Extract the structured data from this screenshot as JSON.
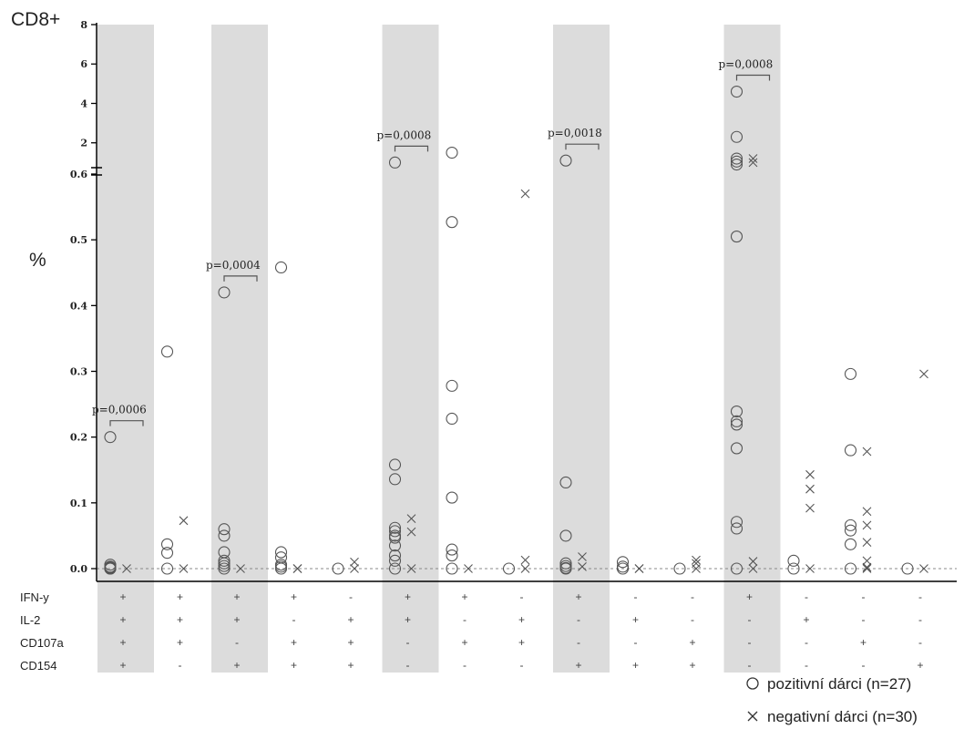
{
  "chart_data": {
    "type": "scatter",
    "title": "CD8+",
    "ylabel": "%",
    "colors": {
      "shade": "#dcdcdc",
      "marker": "#555555",
      "axis": "#000000",
      "baseline": "#888888",
      "text": "#222222"
    },
    "y_axis": {
      "lower_segment": {
        "range": [
          0,
          0.6
        ],
        "ticks": [
          "0.0",
          "0.1",
          "0.2",
          "0.3",
          "0.4",
          "0.5",
          "0.6"
        ]
      },
      "upper_segment": {
        "range": [
          0.6,
          8
        ],
        "ticks": [
          "2",
          "4",
          "6",
          "8"
        ]
      },
      "axis_break": true
    },
    "row_labels": [
      "IFN-y",
      "IL-2",
      "CD107a",
      "CD154"
    ],
    "groups": [
      {
        "shaded": true,
        "markers": [
          "+",
          "+",
          "+",
          "+"
        ],
        "p_value": "p=0,0006",
        "positive": [
          0.2,
          0.006,
          0.003,
          0.002,
          0.001,
          0.0,
          0.0
        ],
        "negative": [
          0.0
        ]
      },
      {
        "shaded": false,
        "markers": [
          "+",
          "+",
          "+",
          "-"
        ],
        "positive": [
          0.33,
          0.037,
          0.024,
          0.0
        ],
        "negative": [
          0.073,
          0.0
        ]
      },
      {
        "shaded": true,
        "markers": [
          "+",
          "+",
          "-",
          "+"
        ],
        "p_value": "p=0,0004",
        "positive": [
          0.42,
          0.06,
          0.05,
          0.025,
          0.012,
          0.008,
          0.004,
          0.0
        ],
        "negative": [
          0.0
        ]
      },
      {
        "shaded": false,
        "markers": [
          "+",
          "-",
          "+",
          "+"
        ],
        "positive": [
          0.458,
          0.025,
          0.017,
          0.006,
          0.003,
          0.0
        ],
        "negative": [
          0.0,
          0.0
        ]
      },
      {
        "shaded": false,
        "markers": [
          "-",
          "+",
          "+",
          "+"
        ],
        "positive": [
          0.0
        ],
        "negative": [
          0.01,
          0.0
        ]
      },
      {
        "shaded": true,
        "markers": [
          "+",
          "+",
          "-",
          "-"
        ],
        "p_value": "p=0,0008",
        "positive": [
          1.0,
          0.158,
          0.136,
          0.062,
          0.057,
          0.05,
          0.047,
          0.035,
          0.02,
          0.012,
          0.0
        ],
        "negative": [
          0.076,
          0.056,
          0.0
        ]
      },
      {
        "shaded": false,
        "markers": [
          "+",
          "-",
          "+",
          "-"
        ],
        "positive": [
          1.5,
          0.527,
          0.278,
          0.228,
          0.108,
          0.029,
          0.02,
          0.0
        ],
        "negative": [
          0.0
        ]
      },
      {
        "shaded": false,
        "markers": [
          "-",
          "+",
          "+",
          "-"
        ],
        "positive": [
          0.0
        ],
        "negative": [
          0.57,
          0.013,
          0.0
        ]
      },
      {
        "shaded": true,
        "markers": [
          "+",
          "-",
          "-",
          "+"
        ],
        "p_value": "p=0,0018",
        "positive": [
          1.1,
          0.131,
          0.05,
          0.008,
          0.004,
          0.001,
          0.0
        ],
        "negative": [
          0.018,
          0.003
        ]
      },
      {
        "shaded": false,
        "markers": [
          "-",
          "+",
          "-",
          "+"
        ],
        "positive": [
          0.01,
          0.003,
          0.0
        ],
        "negative": [
          0.0,
          0.0
        ]
      },
      {
        "shaded": false,
        "markers": [
          "-",
          "-",
          "+",
          "+"
        ],
        "positive": [
          0.0
        ],
        "negative": [
          0.013,
          0.008,
          0.0
        ]
      },
      {
        "shaded": true,
        "markers": [
          "+",
          "-",
          "-",
          "-"
        ],
        "p_value": "p=0,0008",
        "positive": [
          4.6,
          2.3,
          1.2,
          1.05,
          0.9,
          0.505,
          0.239,
          0.224,
          0.219,
          0.183,
          0.071,
          0.061,
          0.0
        ],
        "negative": [
          1.2,
          1.0,
          0.011,
          0.0
        ]
      },
      {
        "shaded": false,
        "markers": [
          "-",
          "+",
          "-",
          "-"
        ],
        "positive": [
          0.012,
          0.0
        ],
        "negative": [
          0.143,
          0.121,
          0.092,
          0.0
        ]
      },
      {
        "shaded": false,
        "markers": [
          "-",
          "-",
          "+",
          "-"
        ],
        "positive": [
          0.296,
          0.18,
          0.066,
          0.058,
          0.037,
          0.0
        ],
        "negative": [
          0.178,
          0.087,
          0.066,
          0.04,
          0.012,
          0.002,
          0.0
        ]
      },
      {
        "shaded": false,
        "markers": [
          "-",
          "-",
          "-",
          "+"
        ],
        "positive": [
          0.0
        ],
        "negative": [
          0.296,
          0.0
        ]
      }
    ],
    "legend": {
      "position": "bottom-right",
      "positive_label": "pozitivní dárci (n=27)",
      "negative_label": "negativní dárci (n=30)"
    }
  }
}
